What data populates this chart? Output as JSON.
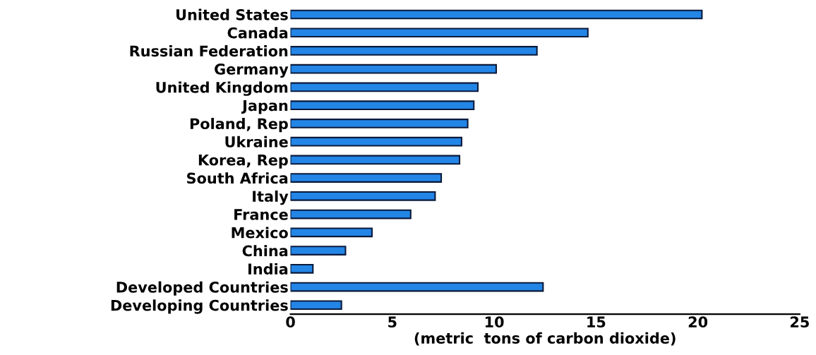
{
  "chart_data": {
    "type": "bar",
    "orientation": "horizontal",
    "xlabel": "(metric  tons of carbon dioxide)",
    "categories": [
      "United States",
      "Canada",
      "Russian Federation",
      "Germany",
      "United Kingdom",
      "Japan",
      "Poland, Rep",
      "Ukraine",
      "Korea, Rep",
      "South Africa",
      "Italy",
      "France",
      "Mexico",
      "China",
      "India",
      "Developed Countries",
      "Developing Countries"
    ],
    "values": [
      20.2,
      14.6,
      12.1,
      10.1,
      9.2,
      9.0,
      8.7,
      8.4,
      8.3,
      7.4,
      7.1,
      5.9,
      4.0,
      2.7,
      1.1,
      12.4,
      2.5
    ],
    "color": "#2385e6",
    "xlim": [
      0,
      25
    ],
    "xticks": [
      0,
      5,
      10,
      15,
      20,
      25
    ],
    "grid": false,
    "legend": false
  }
}
